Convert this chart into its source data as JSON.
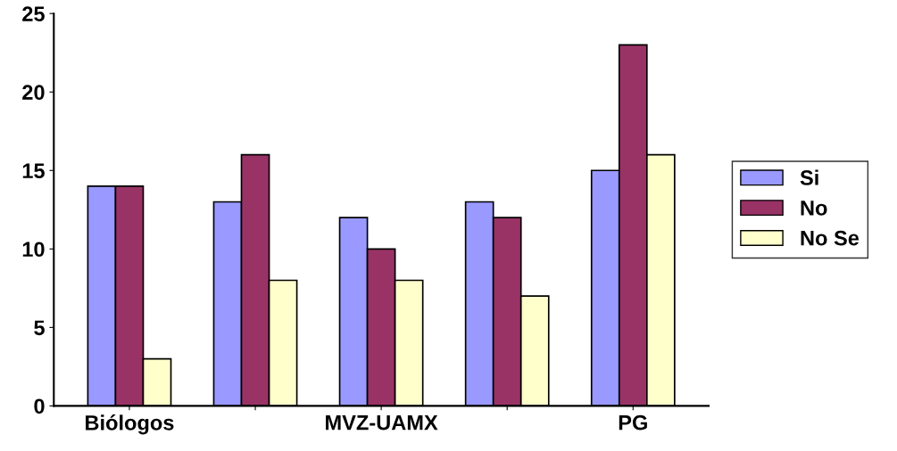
{
  "chart_data": {
    "type": "bar",
    "categories": [
      "Biólogos",
      null,
      "MVZ-UAMX",
      null,
      "PG"
    ],
    "series": [
      {
        "name": "Si",
        "color": "#9999ff",
        "values": [
          14,
          13,
          12,
          13,
          15
        ]
      },
      {
        "name": "No",
        "color": "#993366",
        "values": [
          14,
          16,
          10,
          12,
          23
        ]
      },
      {
        "name": "No Se",
        "color": "#ffffcc",
        "values": [
          3,
          8,
          8,
          7,
          16
        ]
      }
    ],
    "ylim": [
      0,
      25
    ],
    "yticks": [
      0,
      5,
      10,
      15,
      20,
      25
    ],
    "grid": false,
    "legend": "right"
  }
}
